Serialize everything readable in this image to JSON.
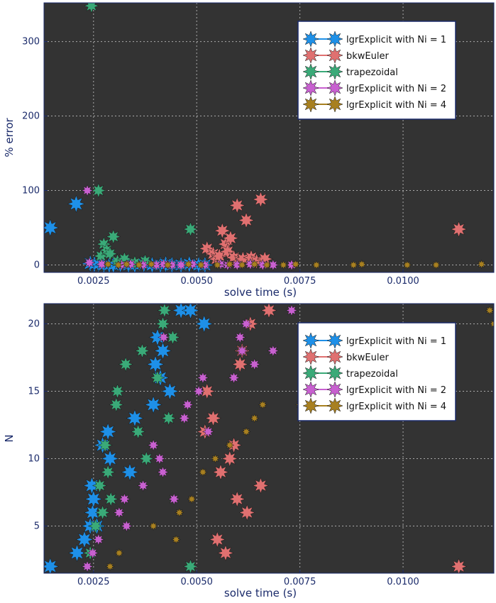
{
  "colors": {
    "plot_background": "#333333",
    "grid": "#aaaaaa",
    "axis_text": "#1a2a6a",
    "frame": "#1a2a6a",
    "legend_bg": "#ffffff"
  },
  "series_meta": [
    {
      "name": "lgrExplicit with Ni = 1",
      "color": "#1e90e8",
      "points": 8,
      "size": 12
    },
    {
      "name": "bkwEuler",
      "color": "#e07070",
      "points": 8,
      "size": 11
    },
    {
      "name": "trapezoidal",
      "color": "#3aaa78",
      "points": 8,
      "size": 10
    },
    {
      "name": "lgrExplicit with Ni = 2",
      "color": "#c860d0",
      "points": 8,
      "size": 8
    },
    {
      "name": "lgrExplicit with Ni = 4",
      "color": "#a88020",
      "points": 8,
      "size": 6
    }
  ],
  "chart_data": [
    {
      "type": "scatter",
      "title": "",
      "xlabel": "solve time (s)",
      "ylabel": "% error",
      "xlim": [
        0.0013,
        0.0122
      ],
      "ylim": [
        -10,
        352
      ],
      "xticks": [
        "0.0025",
        "0.0050",
        "0.0075",
        "0.0100"
      ],
      "xtick_values": [
        0.0025,
        0.005,
        0.0075,
        0.01
      ],
      "yticks": [
        "0",
        "100",
        "200",
        "300"
      ],
      "ytick_values": [
        0,
        100,
        200,
        300
      ],
      "grid": true,
      "legend_position": "top-right",
      "series": [
        {
          "name": "lgrExplicit with Ni = 1",
          "x": [
            0.00145,
            0.00208,
            0.00242,
            0.00252,
            0.00262,
            0.00275,
            0.00288,
            0.00298,
            0.00315,
            0.00335,
            0.0035,
            0.00372,
            0.00392,
            0.00412,
            0.00425,
            0.0044,
            0.00462,
            0.00482,
            0.00505,
            0.0052
          ],
          "y": [
            50,
            82,
            2,
            1,
            1,
            0,
            0,
            0,
            1,
            0,
            0,
            1,
            0,
            0,
            1,
            0,
            0,
            1,
            0,
            0
          ]
        },
        {
          "name": "bkwEuler",
          "x": [
            0.00525,
            0.0054,
            0.00548,
            0.00555,
            0.00562,
            0.0057,
            0.00575,
            0.00582,
            0.0059,
            0.00598,
            0.00605,
            0.00612,
            0.0062,
            0.00632,
            0.00645,
            0.00655,
            0.00665,
            0.01135
          ],
          "y": [
            22,
            15,
            8,
            12,
            46,
            28,
            18,
            36,
            10,
            80,
            5,
            8,
            60,
            10,
            5,
            88,
            8,
            48
          ]
        },
        {
          "name": "trapezoidal",
          "x": [
            0.00245,
            0.00262,
            0.00268,
            0.00275,
            0.00282,
            0.0029,
            0.00298,
            0.00308,
            0.00325,
            0.0035,
            0.00375,
            0.00485
          ],
          "y": [
            348,
            100,
            12,
            28,
            20,
            15,
            38,
            5,
            8,
            3,
            5,
            48
          ]
        },
        {
          "name": "lgrExplicit with Ni = 2",
          "x": [
            0.00235,
            0.0024,
            0.0027,
            0.00318,
            0.0034,
            0.0037,
            0.00402,
            0.0042,
            0.0044,
            0.00462,
            0.0049,
            0.0052,
            0.00558,
            0.00575,
            0.00598,
            0.0063,
            0.0066,
            0.00685,
            0.0073
          ],
          "y": [
            100,
            3,
            1,
            0,
            1,
            0,
            0,
            1,
            0,
            0,
            1,
            0,
            1,
            0,
            0,
            1,
            0,
            0,
            0
          ]
        },
        {
          "name": "lgrExplicit with Ni = 4",
          "x": [
            0.00285,
            0.0031,
            0.0033,
            0.0036,
            0.0039,
            0.0043,
            0.0048,
            0.0051,
            0.0055,
            0.0058,
            0.0061,
            0.0064,
            0.0067,
            0.0071,
            0.0074,
            0.0079,
            0.0088,
            0.009,
            0.0101,
            0.0108,
            0.0119
          ],
          "y": [
            1,
            0,
            1,
            0,
            1,
            0,
            1,
            0,
            0,
            1,
            0,
            1,
            0,
            0,
            1,
            0,
            0,
            1,
            0,
            0,
            1
          ]
        }
      ]
    },
    {
      "type": "scatter",
      "title": "",
      "xlabel": "solve time (s)",
      "ylabel": "N",
      "xlim": [
        0.0013,
        0.0122
      ],
      "ylim": [
        1.5,
        21.5
      ],
      "xticks": [
        "0.0025",
        "0.0050",
        "0.0075",
        "0.0100"
      ],
      "xtick_values": [
        0.0025,
        0.005,
        0.0075,
        0.01
      ],
      "yticks": [
        "5",
        "10",
        "15",
        "20"
      ],
      "ytick_values": [
        5,
        10,
        15,
        20
      ],
      "grid": true,
      "legend_position": "top-right",
      "series": [
        {
          "name": "lgrExplicit with Ni = 1",
          "x": [
            0.00145,
            0.0021,
            0.00228,
            0.00242,
            0.00248,
            0.0025,
            0.00246,
            0.00258,
            0.00272,
            0.00285,
            0.0029,
            0.00338,
            0.0035,
            0.00395,
            0.004,
            0.00412,
            0.00418,
            0.00435,
            0.00462,
            0.00485,
            0.00518,
            0.00405
          ],
          "y": [
            2,
            3,
            4,
            5,
            6,
            7,
            8,
            5,
            11,
            12,
            10,
            9,
            13,
            14,
            17,
            16,
            18,
            15,
            21,
            21,
            20,
            19
          ]
        },
        {
          "name": "bkwEuler",
          "x": [
            0.00525,
            0.0055,
            0.00558,
            0.0057,
            0.0058,
            0.0059,
            0.00598,
            0.00605,
            0.0061,
            0.00622,
            0.0063,
            0.00655,
            0.00675,
            0.0054,
            0.0052,
            0.01135
          ],
          "y": [
            15,
            4,
            9,
            3,
            10,
            11,
            7,
            17,
            18,
            6,
            20,
            8,
            21,
            13,
            12,
            2
          ]
        },
        {
          "name": "trapezoidal",
          "x": [
            0.00242,
            0.00255,
            0.00265,
            0.00272,
            0.00278,
            0.00285,
            0.00292,
            0.00305,
            0.00308,
            0.00328,
            0.00358,
            0.00368,
            0.00378,
            0.00405,
            0.00418,
            0.00422,
            0.00432,
            0.00442,
            0.00485
          ],
          "y": [
            3,
            5,
            8,
            6,
            11,
            9,
            7,
            14,
            15,
            17,
            12,
            18,
            10,
            16,
            20,
            21,
            13,
            19,
            2
          ]
        },
        {
          "name": "lgrExplicit with Ni = 2",
          "x": [
            0.00235,
            0.00248,
            0.00262,
            0.00312,
            0.00325,
            0.0033,
            0.0037,
            0.00395,
            0.0041,
            0.00418,
            0.0042,
            0.00445,
            0.0047,
            0.00478,
            0.00505,
            0.00515,
            0.00528,
            0.0059,
            0.00605,
            0.0061,
            0.0062,
            0.00685,
            0.0073,
            0.0064
          ],
          "y": [
            2,
            3,
            4,
            6,
            7,
            5,
            8,
            11,
            10,
            9,
            19,
            7,
            13,
            14,
            15,
            16,
            12,
            16,
            19,
            18,
            20,
            18,
            21,
            17
          ]
        },
        {
          "name": "lgrExplicit with Ni = 4",
          "x": [
            0.0029,
            0.00312,
            0.00395,
            0.0045,
            0.00458,
            0.00488,
            0.00515,
            0.00545,
            0.0058,
            0.0062,
            0.0064,
            0.0066,
            0.0075,
            0.0121,
            0.0122
          ],
          "y": [
            2,
            3,
            5,
            4,
            6,
            7,
            9,
            10,
            11,
            12,
            13,
            14,
            14,
            21,
            20
          ]
        }
      ]
    }
  ]
}
